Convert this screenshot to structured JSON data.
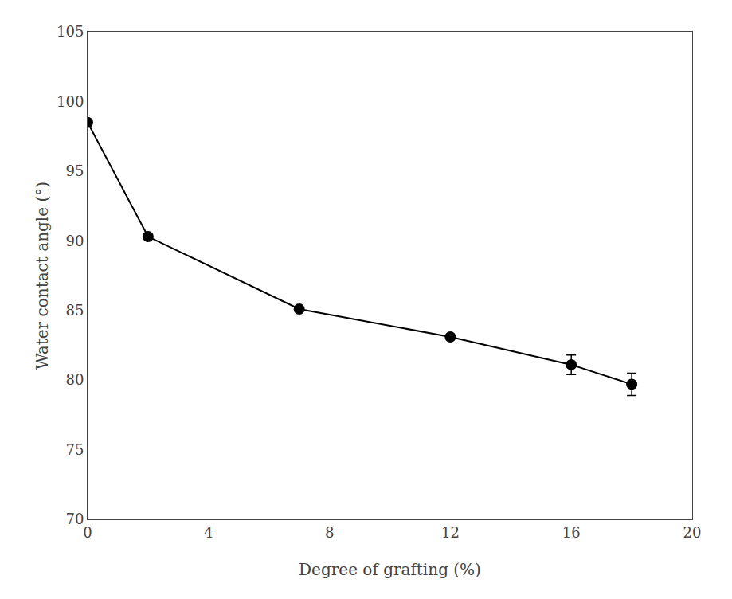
{
  "chart_data": {
    "type": "line",
    "x": [
      0,
      2,
      7,
      12,
      16,
      18
    ],
    "values": [
      98.5,
      90.3,
      85.1,
      83.1,
      81.1,
      79.7
    ],
    "errors": [
      0.0,
      0.0,
      0.0,
      0.0,
      0.7,
      0.8
    ],
    "xlabel": "Degree of grafting (%)",
    "ylabel": "Water contact angle (°)",
    "xlim": [
      0,
      20
    ],
    "ylim": [
      70,
      105
    ],
    "xticks": [
      0,
      4,
      8,
      12,
      16,
      20
    ],
    "yticks": [
      70,
      75,
      80,
      85,
      90,
      95,
      100,
      105
    ],
    "color": "#000000",
    "marker": "circle",
    "grid": false
  }
}
